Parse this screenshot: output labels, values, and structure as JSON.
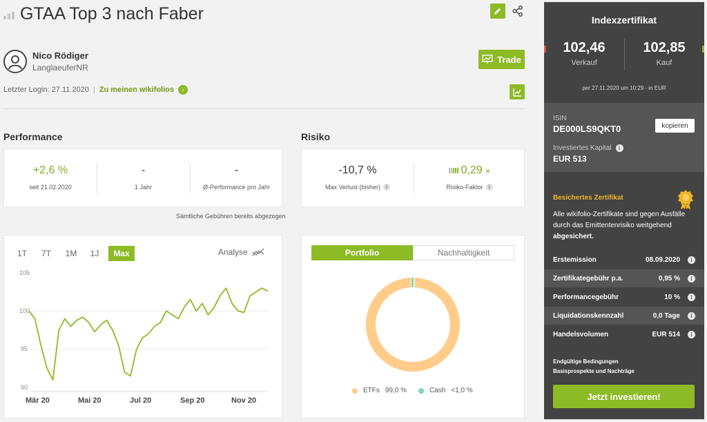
{
  "header": {
    "title": "GTAA Top 3 nach Faber"
  },
  "user": {
    "name": "Nico Rödiger",
    "nickname": "LanglaeuferNR",
    "last_login": "Letzter Login: 27.11.2020",
    "separator": "|",
    "link": "Zu meinen wikifolios",
    "trade_label": "Trade"
  },
  "performance": {
    "title": "Performance",
    "kpis": [
      {
        "value": "+2,6 %",
        "label": "seit 21.02.2020"
      },
      {
        "value": "-",
        "label": "1 Jahr"
      },
      {
        "value": "-",
        "label": "Ø-Performance pro Jahr"
      }
    ],
    "fee_note": "Sämtliche Gebühren bereits abgezogen"
  },
  "risk": {
    "title": "Risiko",
    "kpis": [
      {
        "value": "-10,7 %",
        "label": "Max Verlust (bisher)"
      },
      {
        "value": "0,29",
        "suffix": "×",
        "label": "Risiko-Faktor"
      }
    ]
  },
  "chart_tabs": {
    "items": [
      "1T",
      "7T",
      "1M",
      "1J",
      "Max"
    ],
    "active": "Max",
    "analyse": "Analyse"
  },
  "chart_data": [
    {
      "type": "line",
      "title": "",
      "xlabel": "",
      "ylabel": "",
      "ylim": [
        90,
        105
      ],
      "yticks": [
        "105",
        "100",
        "95",
        "90"
      ],
      "xticks": [
        "Mär 20",
        "Mai 20",
        "Jul 20",
        "Sep 20",
        "Nov 20"
      ],
      "x": [
        "2020-02-21",
        "2020-02-28",
        "2020-03-06",
        "2020-03-13",
        "2020-03-20",
        "2020-03-27",
        "2020-04-03",
        "2020-04-10",
        "2020-04-17",
        "2020-04-24",
        "2020-05-01",
        "2020-05-08",
        "2020-05-15",
        "2020-05-22",
        "2020-05-29",
        "2020-06-05",
        "2020-06-12",
        "2020-06-19",
        "2020-06-26",
        "2020-07-03",
        "2020-07-10",
        "2020-07-17",
        "2020-07-24",
        "2020-07-31",
        "2020-08-07",
        "2020-08-14",
        "2020-08-21",
        "2020-08-28",
        "2020-09-04",
        "2020-09-11",
        "2020-09-18",
        "2020-09-25",
        "2020-10-02",
        "2020-10-09",
        "2020-10-16",
        "2020-10-23",
        "2020-10-30",
        "2020-11-06",
        "2020-11-13",
        "2020-11-20",
        "2020-11-27"
      ],
      "series": [
        {
          "color": "#8cbb26",
          "values": [
            100.0,
            99.0,
            95.5,
            92.5,
            91.0,
            97.5,
            99.0,
            98.0,
            98.8,
            99.2,
            98.5,
            97.3,
            98.2,
            98.8,
            97.5,
            95.5,
            92.0,
            91.5,
            95.0,
            96.5,
            97.0,
            98.0,
            98.5,
            100.0,
            99.5,
            99.0,
            100.5,
            101.5,
            100.0,
            101.0,
            99.5,
            100.5,
            102.0,
            103.0,
            101.0,
            100.0,
            99.8,
            102.0,
            102.5,
            103.0,
            102.6
          ]
        }
      ]
    },
    {
      "type": "pie",
      "title": "",
      "labels": [
        "ETFs",
        "Cash"
      ],
      "values": [
        99.0,
        1.0
      ],
      "value_labels": [
        "99,0 %",
        "<1,0 %"
      ],
      "colors": [
        "#ffcc8a",
        "#7fd8b6"
      ],
      "legend_position": "bottom"
    }
  ],
  "portfolio_tabs": {
    "active": "Portfolio",
    "inactive": "Nachhaltigkeit"
  },
  "certificate": {
    "title": "Indexzertifikat",
    "sell_value": "102,46",
    "sell_label": "Verkauf",
    "buy_value": "102,85",
    "buy_label": "Kauf",
    "date_note": "per 27.11.2020 um 10:29 - in EUR",
    "isin_label": "ISIN",
    "isin_value": "DE000LS9QKT0",
    "copy_label": "kopieren",
    "capital_label": "Investiertes Kapital",
    "capital_value": "EUR 513",
    "secured_title": "Besichertes Zertifikat",
    "secured_text_pre": "Alle wikifolio-Zertifikate sind gegen Ausfälle durch das Emittentenrisiko weitgehend ",
    "secured_text_bold": "abgesichert.",
    "rows": [
      {
        "label": "Erstemission",
        "value": "08.09.2020"
      },
      {
        "label": "Zertifikategebühr p.a.",
        "value": "0,95 %"
      },
      {
        "label": "Performancegebühr",
        "value": "10 %"
      },
      {
        "label": "Liquidationskennzahl",
        "value": "0,0 Tage"
      },
      {
        "label": "Handelsvolumen",
        "value": "EUR 514"
      }
    ],
    "link_terms": "Endgültige Bedingungen",
    "link_prospectus": "Basisprospekte und Nachträge",
    "invest_label": "Jetzt investieren!"
  },
  "icons": {
    "bars": "bars-icon",
    "edit": "pencil-icon",
    "share": "share-icon",
    "avatar": "user-icon",
    "trade": "trade-icon",
    "go": "arrow-right-circle-icon",
    "chart": "chart-trend-icon",
    "analyse": "analyse-icon",
    "info": "info-icon",
    "medal": "medal-icon"
  }
}
